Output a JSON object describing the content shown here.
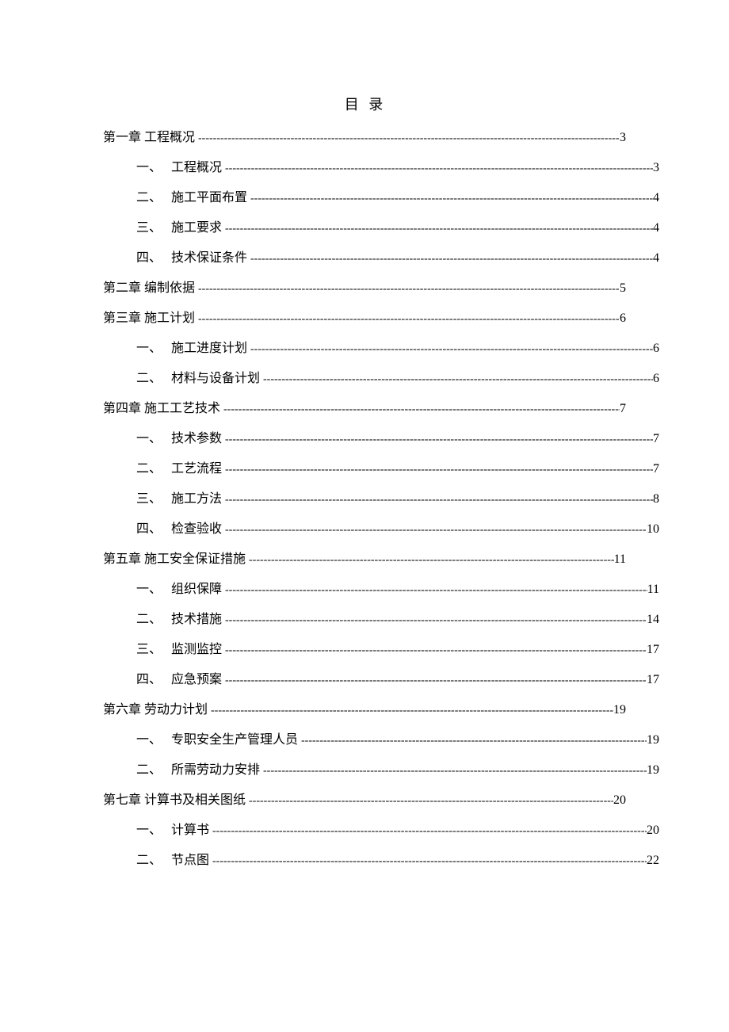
{
  "title": "目 录",
  "leader_char": "-",
  "entries": [
    {
      "type": "chapter",
      "label": "第一章 工程概况",
      "page": "3"
    },
    {
      "type": "section",
      "num": "一、",
      "label": "工程概况",
      "page": "3"
    },
    {
      "type": "section",
      "num": "二、",
      "label": "施工平面布置",
      "page": "4"
    },
    {
      "type": "section",
      "num": "三、",
      "label": "施工要求",
      "page": "4"
    },
    {
      "type": "section",
      "num": "四、",
      "label": "技术保证条件",
      "page": "4"
    },
    {
      "type": "chapter",
      "label": "第二章 编制依据",
      "page": "5"
    },
    {
      "type": "chapter",
      "label": "第三章 施工计划",
      "page": "6"
    },
    {
      "type": "section",
      "num": "一、",
      "label": "施工进度计划",
      "page": "6"
    },
    {
      "type": "section",
      "num": "二、",
      "label": "材料与设备计划",
      "page": "6"
    },
    {
      "type": "chapter",
      "label": "第四章 施工工艺技术",
      "page": "7"
    },
    {
      "type": "section",
      "num": "一、",
      "label": "技术参数",
      "page": "7"
    },
    {
      "type": "section",
      "num": "二、",
      "label": "工艺流程",
      "page": "7"
    },
    {
      "type": "section",
      "num": "三、",
      "label": "施工方法",
      "page": "8"
    },
    {
      "type": "section",
      "num": "四、",
      "label": "检查验收",
      "page": "10"
    },
    {
      "type": "chapter",
      "label": "第五章 施工安全保证措施",
      "page": "11"
    },
    {
      "type": "section",
      "num": "一、",
      "label": "组织保障",
      "page": "11"
    },
    {
      "type": "section",
      "num": "二、",
      "label": "技术措施",
      "page": "14"
    },
    {
      "type": "section",
      "num": "三、",
      "label": "监测监控",
      "page": "17"
    },
    {
      "type": "section",
      "num": "四、",
      "label": "应急预案",
      "page": "17"
    },
    {
      "type": "chapter",
      "label": "第六章 劳动力计划",
      "page": "19"
    },
    {
      "type": "section",
      "num": "一、",
      "label": "专职安全生产管理人员",
      "page": "19"
    },
    {
      "type": "section",
      "num": "二、",
      "label": "所需劳动力安排",
      "page": "19"
    },
    {
      "type": "chapter",
      "label": "第七章 计算书及相关图纸",
      "page": "20"
    },
    {
      "type": "section",
      "num": "一、",
      "label": "计算书",
      "page": "20"
    },
    {
      "type": "section",
      "num": "二、",
      "label": "节点图",
      "page": "22"
    }
  ]
}
